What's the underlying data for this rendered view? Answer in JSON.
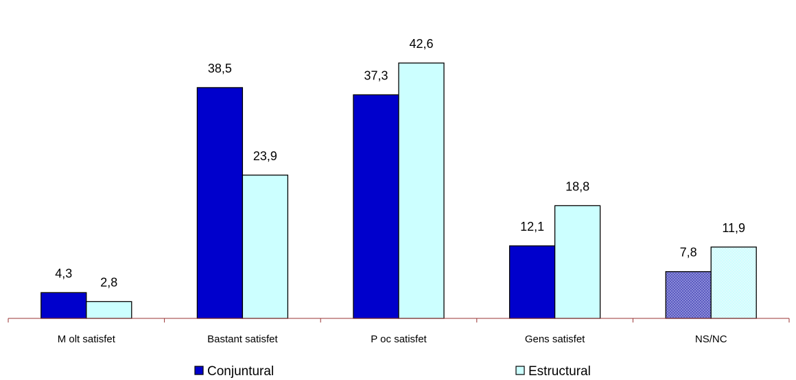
{
  "chart_data": {
    "type": "bar",
    "categories": [
      "M olt satisfet",
      "Bastant satisfet",
      "P oc satisfet",
      "Gens satisfet",
      "NS/NC"
    ],
    "series": [
      {
        "name": "Conjuntural",
        "values": [
          4.3,
          38.5,
          37.3,
          12.1,
          7.8
        ],
        "labels": [
          "4,3",
          "38,5",
          "37,3",
          "12,1",
          "7,8"
        ],
        "color": "#0000cc"
      },
      {
        "name": "Estructural",
        "values": [
          2.8,
          23.9,
          42.6,
          18.8,
          11.9
        ],
        "labels": [
          "2,8",
          "23,9",
          "42,6",
          "18,8",
          "11,9"
        ],
        "color": "#ccffff"
      }
    ],
    "highlight": {
      "category_index": 4,
      "conjuntural_color": "#7070c8",
      "estructural_color": "#d6f6f8",
      "pattern": "dotted"
    },
    "axis_color": "#993333",
    "title": "",
    "xlabel": "",
    "ylabel": "",
    "ylim": [
      0,
      45
    ],
    "grid": false,
    "legend_position": "bottom"
  }
}
